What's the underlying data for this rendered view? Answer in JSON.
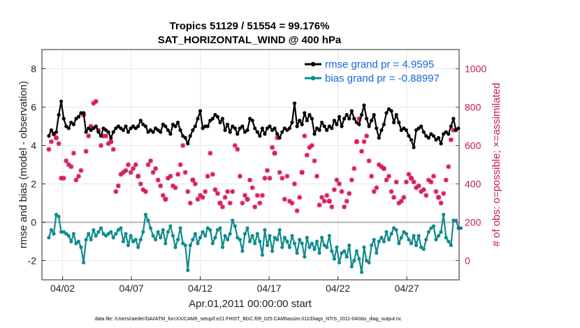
{
  "chart_data": {
    "type": "line",
    "title": [
      "Tropics 51129 / 51554 = 99.176%",
      "SAT_HORIZONTAL_WIND @ 400 hPa"
    ],
    "xlabel": "Apr.01,2011 00:00:00 start",
    "ylabel_left": "rmse and bias (model - observation)",
    "ylabel_right": "# of obs: o=possible; ×=assimilated",
    "xlim": [
      0.5,
      30.8
    ],
    "ylim_left": [
      -3,
      9
    ],
    "ylim_right": [
      -100,
      1100
    ],
    "left_ticks": [
      -2,
      0,
      2,
      4,
      6,
      8
    ],
    "right_ticks": [
      0,
      200,
      400,
      600,
      800,
      1000
    ],
    "x_ticks": [
      {
        "day": 2,
        "label": "04/02"
      },
      {
        "day": 7,
        "label": "04/07"
      },
      {
        "day": 12,
        "label": "04/12"
      },
      {
        "day": 17,
        "label": "04/17"
      },
      {
        "day": 22,
        "label": "04/22"
      },
      {
        "day": 27,
        "label": "04/27"
      }
    ],
    "grid": true,
    "legend_position": "top-right",
    "footer": "data file: /Users/raeder/DAI/ATM_forcXX/CAM6_setup/f.e21.FHIST_BGC.f09_025.CAM6assim.011/Diags_NTrS_2011-04/obs_diag_output.nc",
    "series": [
      {
        "name": "rmse grand pr = 4.9595",
        "color": "#000000",
        "axis": "left",
        "values": [
          4.5,
          4.8,
          4.6,
          4.7,
          5.6,
          6.3,
          5.4,
          5.0,
          4.9,
          5.2,
          5.1,
          5.4,
          5.5,
          5.7,
          5.7,
          4.7,
          4.9,
          4.8,
          4.9,
          5.0,
          4.7,
          4.5,
          4.9,
          4.8,
          4.7,
          4.4,
          4.7,
          4.9,
          5.0,
          4.9,
          4.8,
          5.0,
          4.7,
          4.9,
          5.0,
          4.9,
          5.0,
          5.3,
          5.1,
          5.0,
          4.7,
          4.8,
          4.7,
          4.9,
          4.8,
          4.7,
          5.1,
          5.0,
          4.8,
          4.6,
          5.1,
          5.0,
          5.2,
          4.8,
          4.5,
          4.4,
          4.1,
          4.5,
          4.8,
          5.0,
          5.4,
          5.8,
          4.9,
          5.0,
          5.0,
          5.3,
          5.4,
          5.6,
          5.5,
          5.2,
          5.4,
          4.8,
          5.1,
          4.7,
          5.0,
          4.9,
          4.6,
          4.9,
          5.0,
          4.7,
          4.8,
          5.4,
          5.3,
          4.9,
          4.7,
          4.5,
          4.9,
          4.6,
          4.9,
          5.0,
          4.8,
          4.9,
          4.6,
          4.4,
          4.7,
          4.9,
          4.8,
          4.9,
          5.2,
          6.2,
          5.0,
          5.3,
          5.1,
          5.7,
          5.3,
          5.6,
          5.4,
          4.6,
          4.9,
          4.8,
          5.2,
          5.0,
          4.8,
          5.0,
          4.9,
          5.3,
          5.1,
          5.5,
          5.0,
          5.4,
          5.6,
          5.4,
          5.8,
          5.4,
          5.2,
          5.1,
          5.6,
          6.1,
          5.4,
          5.0,
          5.3,
          5.6,
          4.9,
          4.4,
          4.8,
          5.1,
          5.7,
          5.9,
          5.8,
          5.2,
          5.6,
          5.2,
          4.8,
          4.9,
          4.8,
          4.5,
          4.3,
          3.9,
          4.8,
          4.9,
          5.0,
          4.7,
          4.5,
          4.4,
          4.6,
          4.5,
          4.3,
          4.4,
          4.1,
          4.6,
          4.7,
          4.6,
          5.0,
          5.4,
          4.8,
          4.9
        ]
      },
      {
        "name": "bias grand pr = -0.88997",
        "color": "#0f8b8d",
        "axis": "left",
        "values": [
          -0.8,
          -0.4,
          -0.6,
          0.4,
          0.3,
          -0.5,
          -0.5,
          -0.6,
          -0.7,
          -1.0,
          -0.6,
          -1.1,
          -1.0,
          -1.3,
          -2.1,
          -0.9,
          -0.6,
          -0.9,
          -0.4,
          -0.7,
          -0.5,
          -0.3,
          -0.6,
          -0.7,
          -0.6,
          -0.5,
          -0.8,
          -0.6,
          -0.4,
          -0.3,
          -1.0,
          -0.6,
          -1.2,
          -0.7,
          -1.0,
          -0.9,
          -1.3,
          -0.9,
          -0.5,
          0.4,
          0.1,
          -0.3,
          -0.7,
          -0.9,
          -0.5,
          -0.8,
          -0.4,
          -1.1,
          -0.5,
          -0.2,
          -0.7,
          -1.3,
          -0.9,
          -0.3,
          -1.1,
          -1.2,
          -2.5,
          -1.2,
          -0.9,
          -0.6,
          -1.1,
          -0.8,
          -0.5,
          -0.7,
          -0.3,
          -0.4,
          -1.1,
          -0.8,
          -0.4,
          -0.3,
          -1.3,
          -0.7,
          -0.9,
          -0.6,
          0.1,
          -0.2,
          -0.8,
          -0.9,
          -1.5,
          -0.6,
          -0.3,
          -1.0,
          -0.7,
          -1.1,
          -0.6,
          -1.0,
          -1.7,
          -0.4,
          -1.2,
          -0.7,
          -1.5,
          -0.8,
          -0.9,
          -0.4,
          -1.3,
          -0.8,
          -1.0,
          -1.3,
          -0.7,
          -1.1,
          -1.6,
          -0.9,
          -1.1,
          -1.8,
          -0.8,
          -1.3,
          -1.1,
          -1.4,
          -1.0,
          -1.6,
          -0.8,
          -1.2,
          -1.3,
          -0.7,
          -1.5,
          -1.9,
          -1.3,
          -2.1,
          -1.6,
          -1.5,
          -1.8,
          -1.2,
          -2.3,
          -2.0,
          -1.5,
          -1.9,
          -2.6,
          -1.3,
          -2.0,
          -2.1,
          -1.2,
          -0.9,
          -1.6,
          -1.0,
          -0.8,
          -1.0,
          -0.5,
          -0.9,
          -0.6,
          -0.3,
          -0.4,
          -1.1,
          -0.8,
          -0.5,
          -0.6,
          -0.9,
          -1.1,
          -0.7,
          -1.2,
          -0.7,
          -1.3,
          -1.4,
          -0.9,
          -0.5,
          -0.3,
          -0.2,
          -0.9,
          -0.7,
          -0.5,
          0.4,
          -0.8,
          -1.0,
          -1.2,
          0.1,
          0.1,
          -0.3,
          -0.3
        ]
      },
      {
        "name": "# of obs (possible / assimilated)",
        "color": "#d81b60",
        "axis": "right",
        "values": [
          580,
          620,
          660,
          640,
          610,
          430,
          430,
          520,
          500,
          490,
          560,
          420,
          440,
          470,
          760,
          570,
          650,
          700,
          820,
          830,
          680,
          600,
          650,
          650,
          610,
          620,
          580,
          360,
          390,
          450,
          460,
          470,
          500,
          460,
          480,
          500,
          440,
          400,
          370,
          360,
          500,
          520,
          460,
          480,
          420,
          390,
          340,
          320,
          430,
          440,
          390,
          380,
          450,
          500,
          600,
          460,
          360,
          300,
          420,
          400,
          320,
          340,
          330,
          360,
          440,
          560,
          450,
          370,
          350,
          300,
          280,
          330,
          360,
          300,
          360,
          600,
          580,
          440,
          300,
          340,
          320,
          420,
          380,
          280,
          340,
          300,
          340,
          430,
          470,
          430,
          590,
          560,
          640,
          460,
          430,
          320,
          440,
          310,
          300,
          400,
          260,
          330,
          460,
          650,
          550,
          590,
          600,
          520,
          440,
          290,
          330,
          310,
          340,
          310,
          280,
          370,
          420,
          400,
          360,
          280,
          310,
          350,
          420,
          480,
          620,
          740,
          570,
          620,
          650,
          520,
          440,
          360,
          380,
          500,
          490,
          480,
          420,
          440,
          360,
          330,
          410,
          300,
          310,
          330,
          410,
          450,
          430,
          410,
          380,
          390,
          360,
          370,
          340,
          420,
          410,
          440,
          360,
          330,
          300,
          350,
          420,
          490,
          630,
          680
        ]
      }
    ]
  }
}
